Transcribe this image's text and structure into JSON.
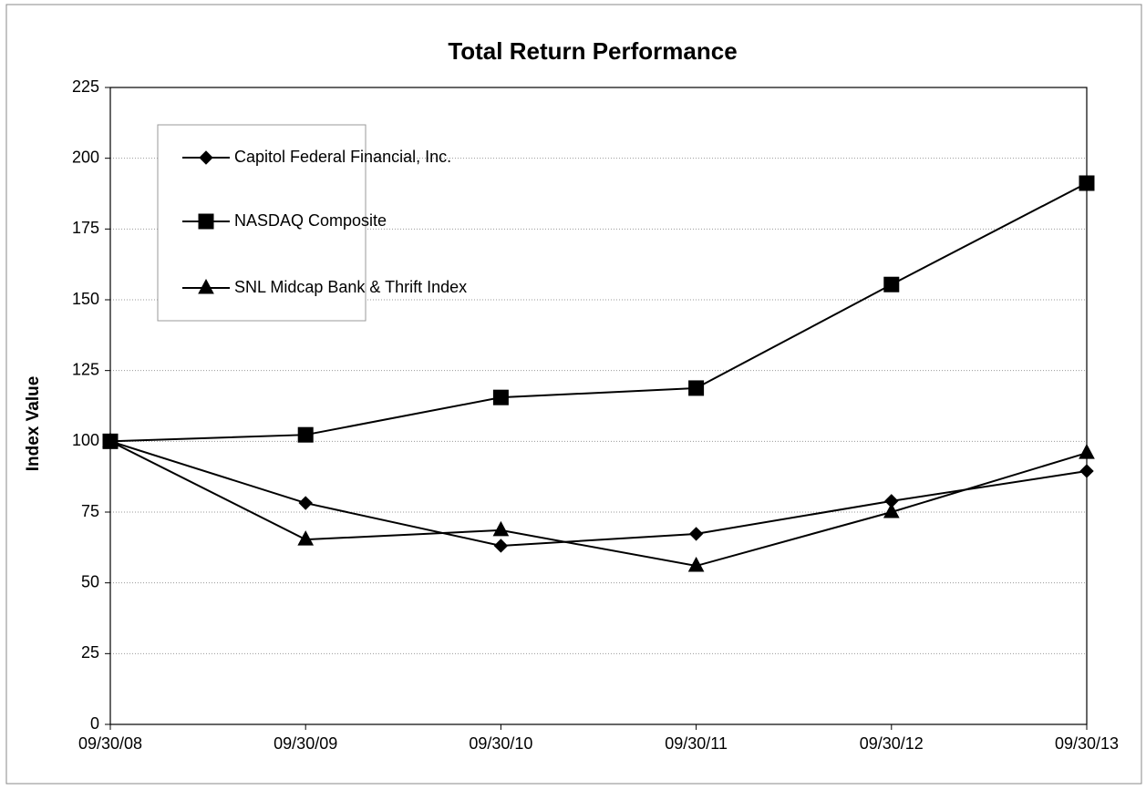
{
  "chart_data": {
    "type": "line",
    "title": "Total Return Performance",
    "y_label": "Index Value",
    "categories": [
      "09/30/08",
      "09/30/09",
      "09/30/10",
      "09/30/11",
      "09/30/12",
      "09/30/13"
    ],
    "series": [
      {
        "name": "Capitol Federal Financial, Inc.",
        "color": "#000000",
        "marker": "diamond",
        "values": [
          100,
          78.2,
          63.1,
          67.3,
          78.9,
          89.5
        ]
      },
      {
        "name": "NASDAQ Composite",
        "color": "#000000",
        "marker": "square",
        "values": [
          100,
          102.3,
          115.5,
          118.8,
          155.4,
          191.2
        ]
      },
      {
        "name": "SNL Midcap Bank & Thrift Index",
        "color": "#000000",
        "marker": "triangle",
        "values": [
          100,
          65.3,
          68.6,
          56,
          75,
          95.9
        ]
      }
    ],
    "ylim": [
      0,
      225
    ],
    "yticks": [
      0,
      25,
      50,
      75,
      100,
      125,
      150,
      175,
      200,
      225
    ],
    "grid": true
  }
}
